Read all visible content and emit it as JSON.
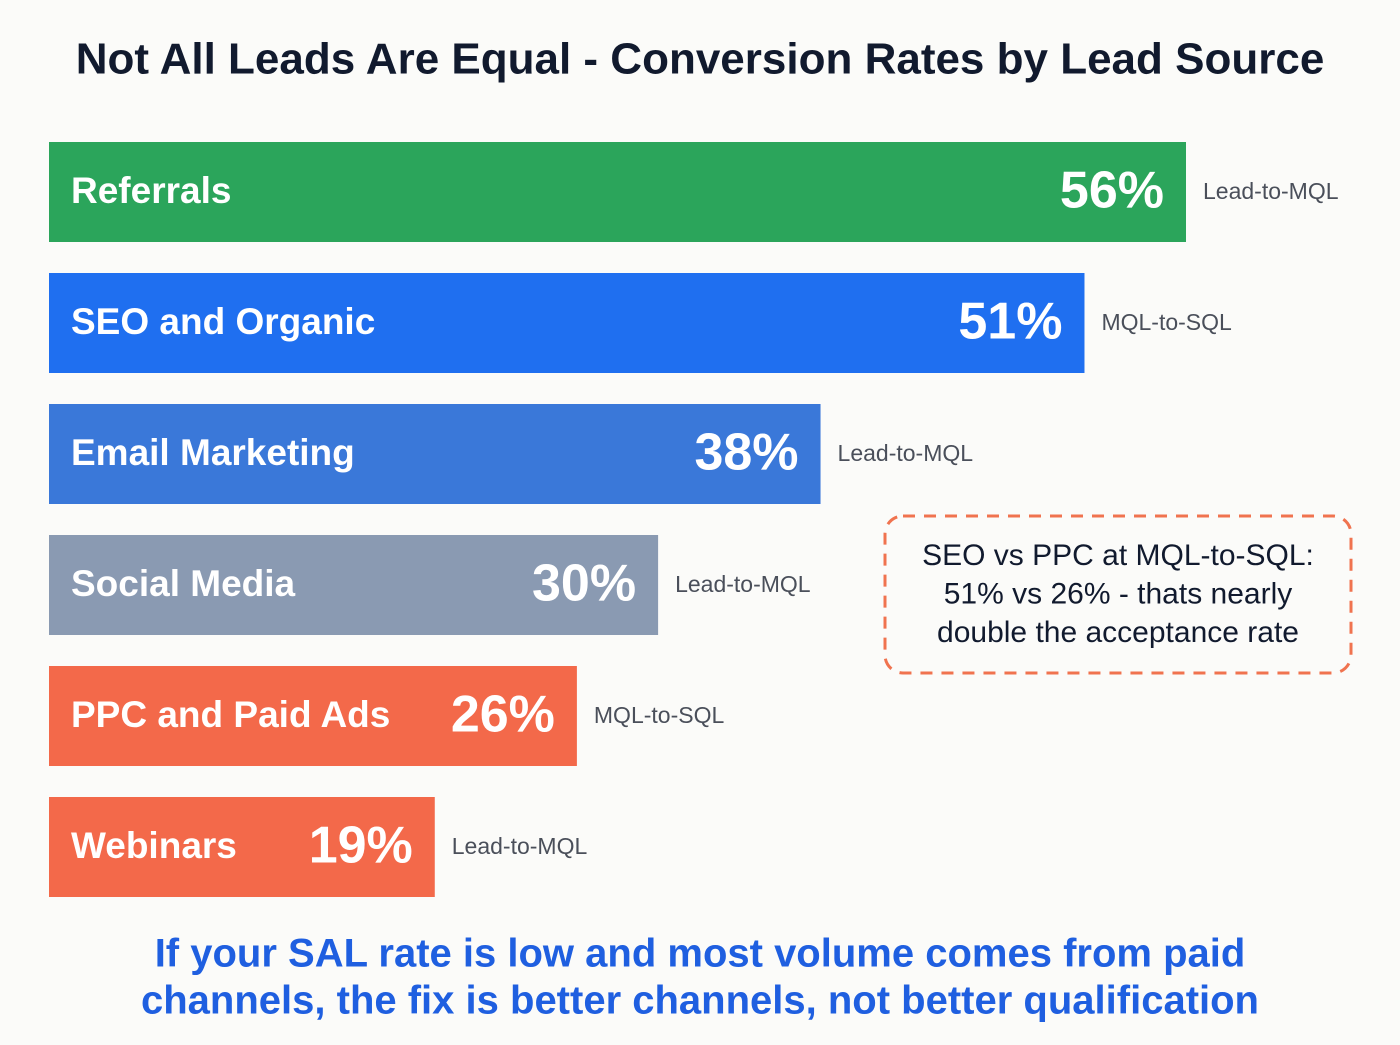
{
  "chart_data": {
    "type": "bar",
    "orientation": "horizontal",
    "title": "Not All Leads Are Equal - Conversion Rates by Lead Source",
    "categories": [
      "Referrals",
      "SEO and Organic",
      "Email Marketing",
      "Social Media",
      "PPC and Paid Ads",
      "Webinars"
    ],
    "values": [
      56,
      51,
      38,
      30,
      26,
      19
    ],
    "value_labels": [
      "56%",
      "51%",
      "38%",
      "30%",
      "26%",
      "19%"
    ],
    "stages": [
      "Lead-to-MQL",
      "MQL-to-SQL",
      "Lead-to-MQL",
      "Lead-to-MQL",
      "MQL-to-SQL",
      "Lead-to-MQL"
    ],
    "colors": [
      "#2ba55b",
      "#1f6ff0",
      "#3a78d9",
      "#8a9ab2",
      "#f3694a",
      "#f3694a"
    ],
    "annotation": [
      "SEO vs PPC at MQL-to-SQL:",
      "51% vs 26% - thats nearly",
      "double the acceptance rate"
    ],
    "footer": [
      "If your SAL rate is low and most volume comes from paid",
      "channels, the fix is better channels, not better qualification"
    ]
  }
}
